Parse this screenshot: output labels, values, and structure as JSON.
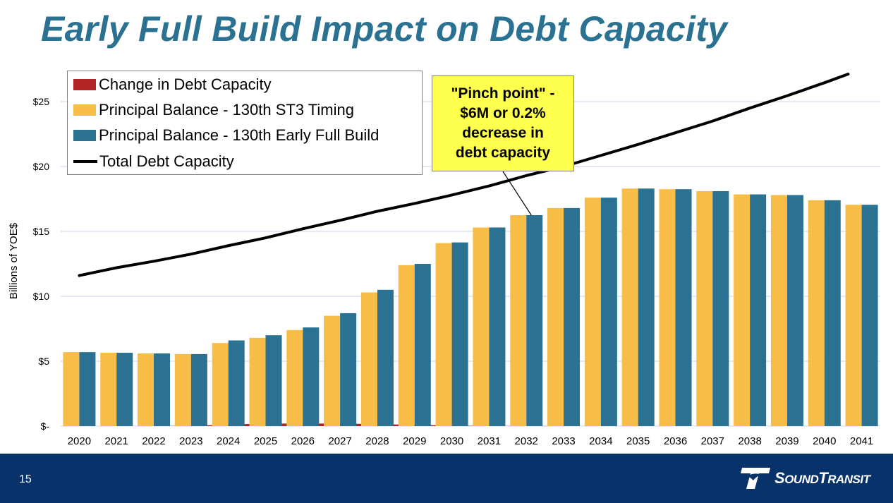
{
  "slide": {
    "title": "Early Full Build Impact on Debt Capacity",
    "page_number": "15",
    "logo_text_big1": "S",
    "logo_text_small1": "OUND",
    "logo_text_big2": "T",
    "logo_text_small2": "RANSIT",
    "logo_icon": "sound-transit-logo-icon"
  },
  "colors": {
    "change": "#b22524",
    "st3": "#f8bd47",
    "early": "#2b7191",
    "line": "#000000",
    "grid": "#d5dcec",
    "title": "#2b7191",
    "footer": "#07336a",
    "callout": "#ffff4d"
  },
  "callout": {
    "line1": "\"Pinch point\" -",
    "line2": "$6M or 0.2%",
    "line3": "decrease in",
    "line4": "debt capacity",
    "target_year": "2032"
  },
  "chart_data": {
    "type": "bar",
    "title": "Early Full Build Impact on Debt Capacity",
    "xlabel": "",
    "ylabel": "Billions of YOE$",
    "ylim": [
      0,
      27
    ],
    "yticks": [
      0,
      5,
      10,
      15,
      20,
      25
    ],
    "ytick_labels": [
      "$-",
      "$5",
      "$10",
      "$15",
      "$20",
      "$25"
    ],
    "grid": true,
    "legend_position": "top-left",
    "categories": [
      "2020",
      "2021",
      "2022",
      "2023",
      "2024",
      "2025",
      "2026",
      "2027",
      "2028",
      "2029",
      "2030",
      "2031",
      "2032",
      "2033",
      "2034",
      "2035",
      "2036",
      "2037",
      "2038",
      "2039",
      "2040",
      "2041"
    ],
    "series": [
      {
        "name": "Change in Debt Capacity",
        "type": "area",
        "values": [
          0.0,
          0.0,
          0.0,
          0.02,
          0.12,
          0.2,
          0.2,
          0.2,
          0.15,
          0.1,
          0.04,
          0.01,
          0.006,
          0.0,
          0.0,
          0.0,
          0.0,
          0.0,
          0.0,
          0.0,
          0.0,
          0.0
        ]
      },
      {
        "name": "Principal Balance - 130th ST3 Timing",
        "type": "bar",
        "values": [
          5.7,
          5.65,
          5.6,
          5.55,
          6.4,
          6.8,
          7.4,
          8.5,
          10.3,
          12.4,
          14.1,
          15.3,
          16.25,
          16.8,
          17.6,
          18.3,
          18.25,
          18.1,
          17.85,
          17.8,
          17.4,
          17.05
        ]
      },
      {
        "name": "Principal Balance - 130th Early Full Build",
        "type": "bar",
        "values": [
          5.7,
          5.65,
          5.6,
          5.55,
          6.6,
          7.0,
          7.6,
          8.7,
          10.5,
          12.5,
          14.15,
          15.3,
          16.25,
          16.8,
          17.6,
          18.3,
          18.25,
          18.1,
          17.85,
          17.8,
          17.4,
          17.05
        ]
      },
      {
        "name": "Total Debt Capacity",
        "type": "line",
        "values": [
          11.6,
          12.2,
          12.7,
          13.25,
          13.9,
          14.5,
          15.2,
          15.85,
          16.55,
          17.15,
          17.8,
          18.5,
          19.3,
          20.0,
          20.85,
          21.7,
          22.6,
          23.5,
          24.5,
          25.45,
          26.45,
          27.5
        ]
      }
    ]
  }
}
